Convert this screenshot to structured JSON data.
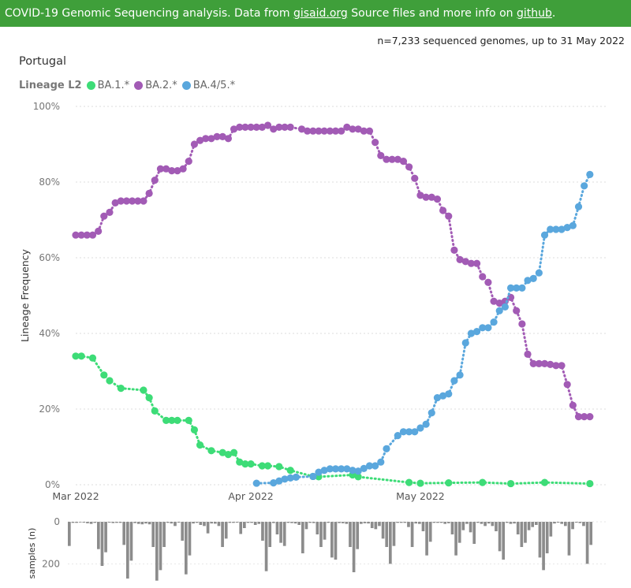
{
  "header": {
    "prefix": "COVID-19 Genomic Sequencing analysis. Data from ",
    "gisaid_link": "gisaid.org",
    "middle": " Source files and more info on ",
    "github_link": "github",
    "suffix": "."
  },
  "summary": "n=7,233 sequenced genomes, up to 31 May 2022",
  "country": "Portugal",
  "legend": {
    "title": "Lineage L2",
    "items": [
      {
        "label": "BA.1.*",
        "color": "#3ddc77"
      },
      {
        "label": "BA.2.*",
        "color": "#a25bb5"
      },
      {
        "label": "BA.4/5.*",
        "color": "#5aa7dd"
      }
    ]
  },
  "chart_data": {
    "type": "line",
    "ylabel": "Lineage Frequency",
    "y_ticks": [
      "0%",
      "20%",
      "40%",
      "60%",
      "80%",
      "100%"
    ],
    "ylim": [
      0,
      100
    ],
    "x_ticks": [
      {
        "label": "Mar 2022",
        "day": 0
      },
      {
        "label": "Apr 2022",
        "day": 31
      },
      {
        "label": "May 2022",
        "day": 61
      }
    ],
    "xlim": [
      0,
      92
    ],
    "grid": true,
    "series": [
      {
        "name": "BA.1.*",
        "color": "#3ddc77",
        "days": [
          0,
          1,
          3,
          5,
          6,
          8,
          12,
          13,
          14,
          16,
          17,
          18,
          20,
          21,
          22,
          24,
          26,
          27,
          28,
          29,
          30,
          31,
          33,
          34,
          36,
          38,
          42,
          43,
          49,
          50,
          59,
          61,
          66,
          72,
          77,
          83,
          91
        ],
        "values": [
          34,
          34,
          33.5,
          29,
          27.5,
          25.5,
          25,
          23,
          19.5,
          17,
          17,
          17,
          17,
          14.5,
          10.5,
          9,
          8.5,
          8,
          8.5,
          6,
          5.5,
          5.5,
          5,
          5,
          4.8,
          3.8,
          2.2,
          2.1,
          2.6,
          2.1,
          0.6,
          0.4,
          0.5,
          0.6,
          0.3,
          0.6,
          0.3
        ]
      },
      {
        "name": "BA.2.*",
        "color": "#a25bb5",
        "days": [
          0,
          1,
          2,
          3,
          4,
          5,
          6,
          7,
          8,
          9,
          10,
          11,
          12,
          13,
          14,
          15,
          16,
          17,
          18,
          19,
          20,
          21,
          22,
          23,
          24,
          25,
          26,
          27,
          28,
          29,
          30,
          31,
          32,
          33,
          34,
          35,
          36,
          37,
          38,
          40,
          41,
          42,
          43,
          44,
          45,
          46,
          47,
          48,
          49,
          50,
          51,
          52,
          53,
          54,
          55,
          56,
          57,
          58,
          59,
          60,
          61,
          62,
          63,
          64,
          65,
          66,
          67,
          68,
          69,
          70,
          71,
          72,
          73,
          74,
          75,
          76,
          77,
          78,
          79,
          80,
          81,
          82,
          83,
          84,
          85,
          86,
          87,
          88,
          89,
          90,
          91
        ],
        "values": [
          66,
          66,
          66,
          66,
          67,
          71,
          72,
          74.5,
          75,
          75,
          75,
          75,
          75,
          77,
          80.5,
          83.5,
          83.5,
          83,
          83,
          83.5,
          85.5,
          90,
          91,
          91.5,
          91.5,
          92,
          92,
          91.5,
          94,
          94.5,
          94.5,
          94.5,
          94.5,
          94.5,
          95,
          94,
          94.5,
          94.5,
          94.5,
          94,
          93.5,
          93.5,
          93.5,
          93.5,
          93.5,
          93.5,
          93.5,
          94.5,
          94,
          94,
          93.5,
          93.5,
          90.5,
          87,
          86,
          86,
          86,
          85.5,
          84,
          81,
          76.5,
          76,
          76,
          75.5,
          72.5,
          71,
          62,
          59.5,
          59,
          58.5,
          58.5,
          55,
          53.5,
          48.5,
          48,
          48.5,
          49.5,
          46,
          42.5,
          34.5,
          32,
          32,
          32,
          31.8,
          31.5,
          31.5,
          26.5,
          21,
          18,
          18,
          18
        ]
      },
      {
        "name": "BA.4/5.*",
        "color": "#5aa7dd",
        "days": [
          32,
          35,
          36,
          37,
          38,
          39,
          42,
          43,
          44,
          45,
          46,
          47,
          48,
          49,
          50,
          51,
          52,
          53,
          54,
          55,
          57,
          58,
          59,
          60,
          61,
          62,
          63,
          64,
          65,
          66,
          67,
          68,
          69,
          70,
          71,
          72,
          73,
          74,
          75,
          76,
          77,
          78,
          79,
          80,
          81,
          82,
          83,
          84,
          85,
          86,
          87,
          88,
          89,
          90,
          91
        ],
        "values": [
          0.4,
          0.5,
          1,
          1.5,
          1.8,
          2,
          2.2,
          3.3,
          3.8,
          4.2,
          4.2,
          4.2,
          4.2,
          3.8,
          3.6,
          4.3,
          5,
          5,
          6,
          9.5,
          13,
          14,
          14,
          14,
          15,
          16,
          19,
          23,
          23.5,
          24,
          27.5,
          29,
          37.5,
          40,
          40.5,
          41.5,
          41.5,
          43,
          46,
          47,
          52,
          52,
          52,
          54,
          54.5,
          56,
          66,
          67.5,
          67.5,
          67.5,
          68,
          68.5,
          73.5,
          79,
          82
        ]
      }
    ],
    "samples": {
      "ylabel": "samples (n)",
      "y_ticks": [
        "0",
        "200"
      ],
      "ylim": [
        0,
        300
      ],
      "values": [
        115,
        5,
        5,
        3,
        4,
        7,
        10,
        5,
        130,
        210,
        145,
        4,
        6,
        5,
        5,
        110,
        270,
        185,
        6,
        10,
        12,
        8,
        12,
        120,
        280,
        230,
        120,
        5,
        8,
        20,
        4,
        90,
        250,
        160,
        8,
        5,
        15,
        20,
        55,
        8,
        9,
        20,
        120,
        80,
        5,
        5,
        4,
        58,
        30,
        5,
        5,
        15,
        10,
        90,
        235,
        120,
        6,
        60,
        100,
        115,
        5,
        6,
        8,
        15,
        150,
        35,
        5,
        6,
        60,
        120,
        85,
        5,
        170,
        180,
        6,
        7,
        10,
        120,
        240,
        130,
        10,
        7,
        8,
        30,
        35,
        20,
        80,
        120,
        200,
        115,
        5,
        5,
        5,
        25,
        120,
        8,
        10,
        45,
        160,
        95,
        5,
        5,
        5,
        10,
        7,
        60,
        160,
        100,
        40,
        10,
        50,
        105,
        5,
        10,
        20,
        8,
        20,
        45,
        140,
        180,
        5,
        10,
        8,
        60,
        120,
        100,
        40,
        25,
        15,
        170,
        230,
        150,
        70,
        8,
        4,
        10,
        20,
        160,
        35,
        4,
        6,
        20,
        200,
        110
      ]
    }
  }
}
